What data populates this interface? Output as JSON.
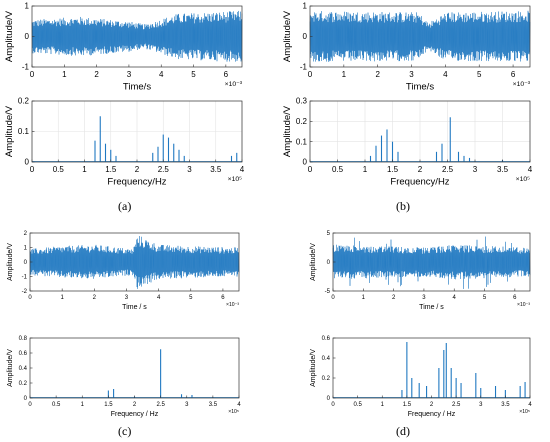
{
  "panel_labels": [
    "(a)",
    "(b)",
    "(c)",
    "(d)"
  ],
  "colors": {
    "signal": "#1f78c1",
    "axis": "#333333",
    "grid": "#e3e3e3"
  },
  "chart_data": [
    {
      "id": "a-time",
      "type": "line",
      "panel": "(a)",
      "xlabel": "Time/s",
      "ylabel": "Amplitude/V",
      "xlim": [
        0,
        6.5
      ],
      "ylim": [
        -1,
        1
      ],
      "x_exponent": "×10⁻³",
      "xticks": [
        0,
        1,
        2,
        3,
        4,
        5,
        6
      ],
      "yticks": [
        -1,
        0,
        1
      ],
      "grid": false,
      "signal": {
        "kind": "time",
        "envelope": [
          [
            0,
            0.55
          ],
          [
            1.5,
            0.65
          ],
          [
            3,
            0.5
          ],
          [
            3.5,
            0.4
          ],
          [
            4.5,
            0.75
          ],
          [
            6.5,
            0.85
          ]
        ],
        "spiky": false
      }
    },
    {
      "id": "a-spec",
      "type": "bar",
      "panel": "(a)",
      "xlabel": "Frequency/Hz",
      "ylabel": "Amplitude/V",
      "xlim": [
        0,
        4
      ],
      "ylim": [
        0,
        0.2
      ],
      "x_exponent": "×10⁵",
      "xticks": [
        0,
        0.5,
        1,
        1.5,
        2,
        2.5,
        3,
        3.5,
        4
      ],
      "yticks": [
        0,
        0.1,
        0.2
      ],
      "grid": true,
      "peaks": [
        {
          "x": 1.2,
          "y": 0.07
        },
        {
          "x": 1.3,
          "y": 0.15
        },
        {
          "x": 1.4,
          "y": 0.06
        },
        {
          "x": 1.5,
          "y": 0.04
        },
        {
          "x": 1.6,
          "y": 0.02
        },
        {
          "x": 2.3,
          "y": 0.03
        },
        {
          "x": 2.4,
          "y": 0.05
        },
        {
          "x": 2.5,
          "y": 0.09
        },
        {
          "x": 2.6,
          "y": 0.08
        },
        {
          "x": 2.7,
          "y": 0.06
        },
        {
          "x": 2.8,
          "y": 0.04
        },
        {
          "x": 2.9,
          "y": 0.02
        },
        {
          "x": 3.8,
          "y": 0.02
        },
        {
          "x": 3.9,
          "y": 0.03
        }
      ]
    },
    {
      "id": "b-time",
      "type": "line",
      "panel": "(b)",
      "xlabel": "Time/s",
      "ylabel": "Amplitude/V",
      "xlim": [
        0,
        6.5
      ],
      "ylim": [
        -1,
        1
      ],
      "x_exponent": "×10⁻³",
      "xticks": [
        0,
        1,
        2,
        3,
        4,
        5,
        6
      ],
      "yticks": [
        -1,
        0,
        1
      ],
      "grid": false,
      "signal": {
        "kind": "time",
        "envelope": [
          [
            0,
            0.85
          ],
          [
            3.2,
            0.8
          ],
          [
            3.5,
            0.45
          ],
          [
            4,
            0.8
          ],
          [
            6.5,
            0.85
          ]
        ],
        "spiky": false
      }
    },
    {
      "id": "b-spec",
      "type": "bar",
      "panel": "(b)",
      "xlabel": "Frequency/Hz",
      "ylabel": "Amplitude/V",
      "xlim": [
        0,
        4
      ],
      "ylim": [
        0,
        0.3
      ],
      "x_exponent": "×10⁵",
      "xticks": [
        0,
        0.5,
        1,
        1.5,
        2,
        2.5,
        3,
        3.5,
        4
      ],
      "yticks": [
        0,
        0.1,
        0.2,
        0.3
      ],
      "grid": true,
      "peaks": [
        {
          "x": 1.1,
          "y": 0.03
        },
        {
          "x": 1.2,
          "y": 0.08
        },
        {
          "x": 1.3,
          "y": 0.13
        },
        {
          "x": 1.4,
          "y": 0.16
        },
        {
          "x": 1.5,
          "y": 0.1
        },
        {
          "x": 1.6,
          "y": 0.05
        },
        {
          "x": 2.3,
          "y": 0.05
        },
        {
          "x": 2.4,
          "y": 0.09
        },
        {
          "x": 2.55,
          "y": 0.22
        },
        {
          "x": 2.7,
          "y": 0.05
        },
        {
          "x": 2.8,
          "y": 0.03
        },
        {
          "x": 2.9,
          "y": 0.02
        },
        {
          "x": 3.5,
          "y": 0.01
        }
      ]
    },
    {
      "id": "c-time",
      "type": "line",
      "panel": "(c)",
      "xlabel": "Time / s",
      "ylabel": "Amplitude/V",
      "xlim": [
        0,
        6.5
      ],
      "ylim": [
        -2,
        2
      ],
      "x_exponent": "×10⁻³",
      "xticks": [
        0,
        1,
        2,
        3,
        4,
        5,
        6
      ],
      "yticks": [
        -2,
        -1,
        0,
        1,
        2
      ],
      "grid": false,
      "signal": {
        "kind": "time",
        "envelope": [
          [
            0,
            0.9
          ],
          [
            1,
            1.1
          ],
          [
            2,
            1.2
          ],
          [
            3.2,
            0.9
          ],
          [
            3.35,
            1.9
          ],
          [
            3.6,
            1.6
          ],
          [
            4,
            1.2
          ],
          [
            5,
            1.1
          ],
          [
            6.5,
            1.0
          ]
        ],
        "spiky": false
      }
    },
    {
      "id": "c-spec",
      "type": "bar",
      "panel": "(c)",
      "xlabel": "Frequency / Hz",
      "ylabel": "Amplitude/V",
      "xlim": [
        0,
        4
      ],
      "ylim": [
        0,
        0.8
      ],
      "x_exponent": "×10⁵",
      "xticks": [
        0,
        0.5,
        1,
        1.5,
        2,
        2.5,
        3,
        3.5,
        4
      ],
      "yticks": [
        0,
        0.2,
        0.4,
        0.6,
        0.8
      ],
      "grid": false,
      "peaks": [
        {
          "x": 1.5,
          "y": 0.1
        },
        {
          "x": 1.6,
          "y": 0.12
        },
        {
          "x": 2.0,
          "y": 0.02
        },
        {
          "x": 2.5,
          "y": 0.65
        },
        {
          "x": 2.9,
          "y": 0.05
        },
        {
          "x": 3.1,
          "y": 0.04
        },
        {
          "x": 3.5,
          "y": 0.01
        }
      ]
    },
    {
      "id": "d-time",
      "type": "line",
      "panel": "(d)",
      "xlabel": "Time / s",
      "ylabel": "Amplitude/V",
      "xlim": [
        0,
        6.5
      ],
      "ylim": [
        -5,
        5
      ],
      "x_exponent": "×10⁻³",
      "xticks": [
        0,
        1,
        2,
        3,
        4,
        5,
        6
      ],
      "yticks": [
        -5,
        0,
        5
      ],
      "grid": false,
      "signal": {
        "kind": "time",
        "envelope": [
          [
            0,
            3
          ],
          [
            3,
            2.5
          ],
          [
            4,
            3
          ],
          [
            6.5,
            2.5
          ]
        ],
        "spiky": true
      }
    },
    {
      "id": "d-spec",
      "type": "bar",
      "panel": "(d)",
      "xlabel": "Frequency / Hz",
      "ylabel": "Amplitude/V",
      "xlim": [
        0,
        4
      ],
      "ylim": [
        0,
        0.6
      ],
      "x_exponent": "×10⁵",
      "xticks": [
        0,
        0.5,
        1,
        1.5,
        2,
        2.5,
        3,
        3.5,
        4
      ],
      "yticks": [
        0,
        0.2,
        0.4,
        0.6
      ],
      "grid": false,
      "peaks": [
        {
          "x": 1.4,
          "y": 0.08
        },
        {
          "x": 1.5,
          "y": 0.56
        },
        {
          "x": 1.6,
          "y": 0.2
        },
        {
          "x": 1.75,
          "y": 0.15
        },
        {
          "x": 1.9,
          "y": 0.12
        },
        {
          "x": 2.15,
          "y": 0.3
        },
        {
          "x": 2.25,
          "y": 0.48
        },
        {
          "x": 2.3,
          "y": 0.55
        },
        {
          "x": 2.4,
          "y": 0.3
        },
        {
          "x": 2.5,
          "y": 0.2
        },
        {
          "x": 2.6,
          "y": 0.15
        },
        {
          "x": 2.9,
          "y": 0.25
        },
        {
          "x": 3.0,
          "y": 0.1
        },
        {
          "x": 3.3,
          "y": 0.12
        },
        {
          "x": 3.5,
          "y": 0.08
        },
        {
          "x": 3.8,
          "y": 0.12
        },
        {
          "x": 3.9,
          "y": 0.16
        }
      ]
    }
  ]
}
